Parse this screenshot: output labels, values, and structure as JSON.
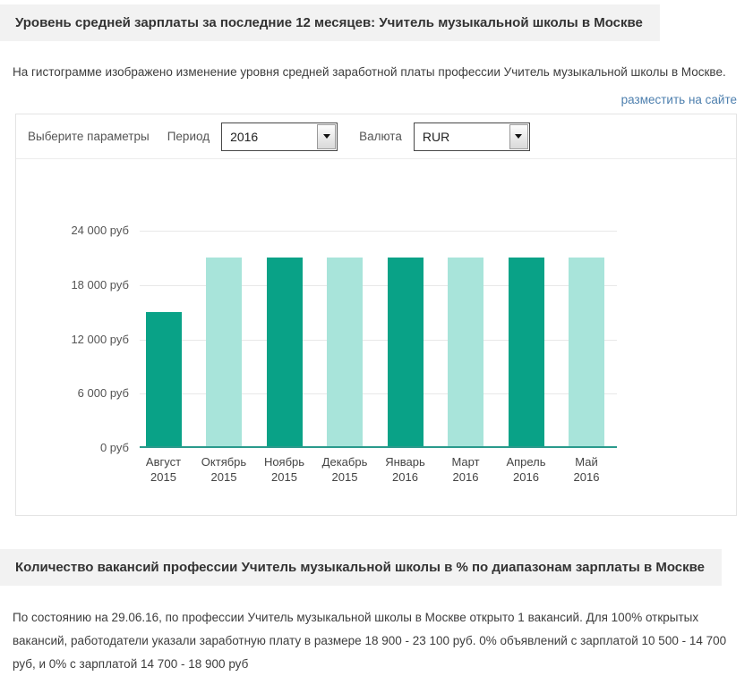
{
  "page": {
    "title": "Уровень средней зарплаты за последние 12 месяцев: Учитель музыкальной школы в Москве",
    "description": "На гистограмме изображено изменение уровня средней заработной платы профессии Учитель музыкальной школы в Москве.",
    "embed_link": "разместить на сайте"
  },
  "filters": {
    "label": "Выберите параметры",
    "period": {
      "label": "Период",
      "value": "2016"
    },
    "currency": {
      "label": "Валюта",
      "value": "RUR"
    }
  },
  "chart_data": {
    "type": "bar",
    "title": "Уровень средней зарплаты за последние 12 месяцев: Учитель музыкальной школы в Москве",
    "xlabel": "",
    "ylabel": "",
    "unit": "руб",
    "categories": [
      {
        "month": "Август",
        "year": "2015"
      },
      {
        "month": "Октябрь",
        "year": "2015"
      },
      {
        "month": "Ноябрь",
        "year": "2015"
      },
      {
        "month": "Декабрь",
        "year": "2015"
      },
      {
        "month": "Январь",
        "year": "2016"
      },
      {
        "month": "Март",
        "year": "2016"
      },
      {
        "month": "Апрель",
        "year": "2016"
      },
      {
        "month": "Май",
        "year": "2016"
      }
    ],
    "values": [
      15000,
      21000,
      21000,
      21000,
      21000,
      21000,
      21000,
      21000
    ],
    "ylim": [
      0,
      24000
    ],
    "yticks": [
      {
        "value": 0,
        "label": "0 руб"
      },
      {
        "value": 6000,
        "label": "6 000 руб"
      },
      {
        "value": 12000,
        "label": "12 000 руб"
      },
      {
        "value": 18000,
        "label": "18 000 руб"
      },
      {
        "value": 24000,
        "label": "24 000 руб"
      }
    ],
    "grid": true,
    "legend": false,
    "bar_colors": [
      "#09a287",
      "#a8e4da",
      "#09a287",
      "#a8e4da",
      "#09a287",
      "#a8e4da",
      "#09a287",
      "#a8e4da"
    ],
    "axis_line_color": "#2a9a8c"
  },
  "vacancies": {
    "title": "Количество вакансий профессии Учитель музыкальной школы в % по диапазонам зарплаты в Москве",
    "text": "По состоянию на 29.06.16, по профессии Учитель музыкальной школы в Москве открыто 1 вакансий. Для 100% открытых вакансий, работодатели указали заработную плату в размере 18 900 - 23 100 руб. 0% объявлений с зарплатой 10 500 - 14 700 руб, и 0% с зарплатой 14 700 - 18 900 руб"
  },
  "colors": {
    "link_blue": "#4d7fae",
    "bar_dark": "#09a287",
    "bar_light": "#a8e4da",
    "header_bg": "#f2f2f2",
    "axis_teal": "#2a9a8c"
  }
}
